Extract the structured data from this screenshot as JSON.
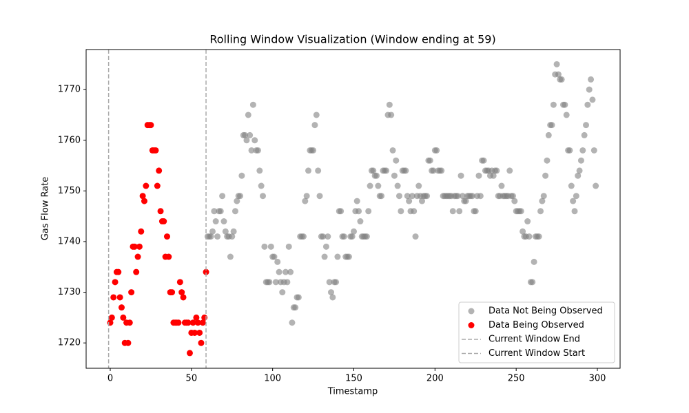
{
  "chart_data": {
    "type": "scatter",
    "title": "Rolling Window Visualization (Window ending at 59)",
    "x_label": "Timestamp",
    "y_label": "Gas Flow Rate",
    "xlim": [
      -14.85,
      314
    ],
    "ylim": [
      1715,
      1777.9
    ],
    "xticks": [
      0,
      50,
      100,
      150,
      200,
      250,
      300
    ],
    "yticks": [
      1720,
      1730,
      1740,
      1750,
      1760,
      1770
    ],
    "grid": false,
    "legend": "lower right",
    "series": [
      {
        "name": "Data Not Being Observed",
        "color": "#808080",
        "x": [
          60,
          61,
          62,
          63,
          64,
          65,
          66,
          67,
          68,
          69,
          70,
          71,
          72,
          73,
          74,
          75,
          76,
          77,
          78,
          79,
          80,
          81,
          82,
          83,
          84,
          85,
          86,
          87,
          88,
          89,
          90,
          91,
          92,
          93,
          94,
          95,
          96,
          97,
          98,
          99,
          100,
          101,
          102,
          103,
          104,
          105,
          106,
          107,
          108,
          109,
          110,
          111,
          112,
          113,
          114,
          115,
          116,
          117,
          118,
          119,
          120,
          121,
          122,
          123,
          124,
          125,
          126,
          127,
          128,
          129,
          130,
          131,
          132,
          133,
          134,
          135,
          136,
          137,
          138,
          139,
          140,
          141,
          142,
          143,
          144,
          145,
          146,
          147,
          148,
          149,
          150,
          151,
          152,
          153,
          154,
          155,
          156,
          157,
          158,
          159,
          160,
          161,
          162,
          163,
          164,
          165,
          166,
          167,
          168,
          169,
          170,
          171,
          172,
          173,
          174,
          175,
          176,
          177,
          178,
          179,
          180,
          181,
          182,
          183,
          184,
          185,
          186,
          187,
          188,
          189,
          190,
          191,
          192,
          193,
          194,
          195,
          196,
          197,
          198,
          199,
          200,
          201,
          202,
          203,
          204,
          205,
          206,
          207,
          208,
          209,
          210,
          211,
          212,
          213,
          214,
          215,
          216,
          217,
          218,
          219,
          220,
          221,
          222,
          223,
          224,
          225,
          226,
          227,
          228,
          229,
          230,
          231,
          232,
          233,
          234,
          235,
          236,
          237,
          238,
          239,
          240,
          241,
          242,
          243,
          244,
          245,
          246,
          247,
          248,
          249,
          250,
          251,
          252,
          253,
          254,
          255,
          256,
          257,
          258,
          259,
          260,
          261,
          262,
          263,
          264,
          265,
          266,
          267,
          268,
          269,
          270,
          271,
          272,
          273,
          274,
          275,
          276,
          277,
          278,
          279,
          280,
          281,
          282,
          283,
          284,
          285,
          286,
          287,
          288,
          289,
          290,
          291,
          292,
          293,
          294,
          295,
          296,
          297,
          298,
          299
        ],
        "values": [
          1741,
          1741,
          1741,
          1742,
          1746,
          1744,
          1741,
          1746,
          1746,
          1749,
          1744,
          1742,
          1741,
          1741,
          1737,
          1741,
          1742,
          1746,
          1748,
          1749,
          1749,
          1753,
          1761,
          1761,
          1760,
          1765,
          1761,
          1758,
          1767,
          1760,
          1758,
          1758,
          1754,
          1751,
          1749,
          1739,
          1732,
          1732,
          1732,
          1739,
          1737,
          1737,
          1732,
          1736,
          1734,
          1732,
          1730,
          1732,
          1734,
          1732,
          1739,
          1734,
          1724,
          1727,
          1727,
          1729,
          1729,
          1741,
          1741,
          1741,
          1748,
          1749,
          1754,
          1758,
          1758,
          1758,
          1763,
          1765,
          1754,
          1749,
          1741,
          1741,
          1737,
          1739,
          1741,
          1732,
          1730,
          1729,
          1732,
          1732,
          1737,
          1746,
          1746,
          1741,
          1741,
          1737,
          1737,
          1737,
          1741,
          1741,
          1742,
          1746,
          1748,
          1746,
          1744,
          1741,
          1741,
          1741,
          1741,
          1746,
          1751,
          1754,
          1754,
          1753,
          1753,
          1751,
          1749,
          1749,
          1754,
          1754,
          1754,
          1765,
          1767,
          1765,
          1758,
          1753,
          1756,
          1751,
          1749,
          1746,
          1754,
          1754,
          1754,
          1749,
          1748,
          1746,
          1749,
          1746,
          1741,
          1749,
          1751,
          1749,
          1748,
          1749,
          1749,
          1749,
          1756,
          1756,
          1754,
          1754,
          1758,
          1758,
          1754,
          1754,
          1754,
          1749,
          1749,
          1749,
          1749,
          1749,
          1749,
          1746,
          1749,
          1749,
          1749,
          1746,
          1753,
          1749,
          1748,
          1748,
          1749,
          1749,
          1749,
          1749,
          1746,
          1746,
          1749,
          1753,
          1749,
          1756,
          1756,
          1754,
          1754,
          1754,
          1753,
          1754,
          1753,
          1754,
          1754,
          1749,
          1749,
          1751,
          1749,
          1749,
          1749,
          1749,
          1754,
          1749,
          1749,
          1748,
          1746,
          1746,
          1746,
          1746,
          1742,
          1741,
          1741,
          1744,
          1741,
          1732,
          1732,
          1736,
          1741,
          1741,
          1741,
          1746,
          1748,
          1749,
          1753,
          1756,
          1761,
          1763,
          1763,
          1767,
          1773,
          1775,
          1773,
          1772,
          1772,
          1767,
          1767,
          1765,
          1758,
          1758,
          1751,
          1748,
          1746,
          1749,
          1753,
          1754,
          1756,
          1758,
          1761,
          1763,
          1767,
          1770,
          1772,
          1768,
          1758,
          1751
        ]
      },
      {
        "name": "Data Being Observed",
        "color": "#ff0000",
        "x": [
          0,
          1,
          2,
          3,
          4,
          5,
          6,
          7,
          8,
          9,
          10,
          11,
          12,
          13,
          14,
          15,
          16,
          17,
          18,
          19,
          20,
          21,
          22,
          23,
          24,
          25,
          26,
          27,
          28,
          29,
          30,
          31,
          32,
          33,
          34,
          35,
          36,
          37,
          38,
          39,
          40,
          41,
          42,
          43,
          44,
          45,
          46,
          47,
          48,
          49,
          50,
          51,
          52,
          53,
          54,
          55,
          56,
          57,
          58,
          59
        ],
        "values": [
          1724,
          1725,
          1729,
          1732,
          1734,
          1734,
          1729,
          1727,
          1725,
          1720,
          1724,
          1720,
          1724,
          1730,
          1739,
          1739,
          1734,
          1737,
          1739,
          1742,
          1749,
          1748,
          1751,
          1763,
          1763,
          1763,
          1758,
          1758,
          1758,
          1751,
          1754,
          1746,
          1744,
          1744,
          1737,
          1741,
          1737,
          1730,
          1730,
          1724,
          1724,
          1724,
          1724,
          1732,
          1730,
          1729,
          1724,
          1724,
          1724,
          1718,
          1722,
          1724,
          1722,
          1725,
          1724,
          1722,
          1720,
          1724,
          1725,
          1734
        ]
      }
    ],
    "vlines": [
      {
        "name": "Current Window End",
        "x": 59,
        "color": "#aaaaaa"
      },
      {
        "name": "Current Window Start",
        "x": -1,
        "color": "#aaaaaa"
      }
    ]
  }
}
